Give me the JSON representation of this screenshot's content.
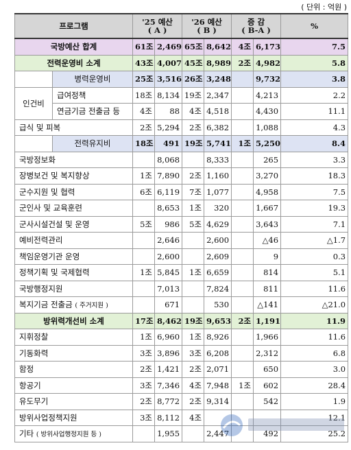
{
  "unit": "( 단위 : 억원 )",
  "headers": {
    "program": "프로그램",
    "y25_top": "'25 예산",
    "y25_sub": "( A )",
    "y26_top": "'26 예산",
    "y26_sub": "( B )",
    "diff_top": "증 감",
    "diff_sub": "( B-A )",
    "pct": "%"
  },
  "rows": {
    "r1": {
      "label": "국방예산 합계",
      "a1": "61조",
      "a2": "2,469",
      "b1": "65조",
      "b2": "8,642",
      "d1": "4조",
      "d2": "6,173",
      "p": "7.5"
    },
    "r2": {
      "label": "전력운영비 소계",
      "a1": "43조",
      "a2": "4,007",
      "b1": "45조",
      "b2": "8,989",
      "d1": "2조",
      "d2": "4,982",
      "p": "5.8"
    },
    "r3": {
      "label": "병력운영비",
      "a1": "25조",
      "a2": "3,516",
      "b1": "26조",
      "b2": "3,248",
      "d1": "",
      "d2": "9,732",
      "p": "3.8"
    },
    "r4": {
      "group": "인건비",
      "label": "급여정책",
      "a1": "18조",
      "a2": "8,134",
      "b1": "19조",
      "b2": "2,347",
      "d1": "",
      "d2": "4,213",
      "p": "2.2"
    },
    "r5": {
      "label": "연금기금 전출금 등",
      "a1": "4조",
      "a2": "88",
      "b1": "4조",
      "b2": "4,518",
      "d1": "",
      "d2": "4,430",
      "p": "11.1"
    },
    "r6": {
      "label": "급식 및 피복",
      "a1": "2조",
      "a2": "5,294",
      "b1": "2조",
      "b2": "6,382",
      "d1": "",
      "d2": "1,088",
      "p": "4.3"
    },
    "r7": {
      "label": "전력유지비",
      "a1": "18조",
      "a2": "491",
      "b1": "19조",
      "b2": "5,741",
      "d1": "1조",
      "d2": "5,250",
      "p": "8.4"
    },
    "r8": {
      "label": "국방정보화",
      "a1": "",
      "a2": "8,068",
      "b1": "",
      "b2": "8,333",
      "d1": "",
      "d2": "265",
      "p": "3.3"
    },
    "r9": {
      "label": "장병보건 및 복지향상",
      "a1": "1조",
      "a2": "7,890",
      "b1": "2조",
      "b2": "1,160",
      "d1": "",
      "d2": "3,270",
      "p": "18.3"
    },
    "r10": {
      "label": "군수지원 및 협력",
      "a1": "6조",
      "a2": "6,119",
      "b1": "7조",
      "b2": "1,077",
      "d1": "",
      "d2": "4,958",
      "p": "7.5"
    },
    "r11": {
      "label": "군인사 및 교육훈련",
      "a1": "",
      "a2": "8,653",
      "b1": "1조",
      "b2": "320",
      "d1": "",
      "d2": "1,667",
      "p": "19.3"
    },
    "r12": {
      "label": "군사시설건설 및 운영",
      "a1": "5조",
      "a2": "986",
      "b1": "5조",
      "b2": "4,629",
      "d1": "",
      "d2": "3,643",
      "p": "7.1"
    },
    "r13": {
      "label": "예비전력관리",
      "a1": "",
      "a2": "2,646",
      "b1": "",
      "b2": "2,600",
      "d1": "",
      "d2": "△46",
      "p": "△1.7"
    },
    "r14": {
      "label": "책임운영기관 운영",
      "a1": "",
      "a2": "2,600",
      "b1": "",
      "b2": "2,609",
      "d1": "",
      "d2": "9",
      "p": "0.3"
    },
    "r15": {
      "label": "정책기획 및 국제협력",
      "a1": "1조",
      "a2": "5,845",
      "b1": "1조",
      "b2": "6,659",
      "d1": "",
      "d2": "814",
      "p": "5.1"
    },
    "r16": {
      "label": "국방행정지원",
      "a1": "",
      "a2": "7,013",
      "b1": "",
      "b2": "7,824",
      "d1": "",
      "d2": "811",
      "p": "11.6"
    },
    "r17": {
      "label": "복지기금 전출금",
      "note": "( 주거지원 )",
      "a1": "",
      "a2": "671",
      "b1": "",
      "b2": "530",
      "d1": "",
      "d2": "△141",
      "p": "△21.0"
    },
    "r18": {
      "label": "방위력개선비 소계",
      "a1": "17조",
      "a2": "8,462",
      "b1": "19조",
      "b2": "9,653",
      "d1": "2조",
      "d2": "1,191",
      "p": "11.9"
    },
    "r19": {
      "label": "지휘정찰",
      "a1": "1조",
      "a2": "6,960",
      "b1": "1조",
      "b2": "8,926",
      "d1": "",
      "d2": "1,966",
      "p": "11.6"
    },
    "r20": {
      "label": "기동화력",
      "a1": "3조",
      "a2": "3,896",
      "b1": "3조",
      "b2": "6,208",
      "d1": "",
      "d2": "2,312",
      "p": "6.8"
    },
    "r21": {
      "label": "함정",
      "a1": "2조",
      "a2": "1,421",
      "b1": "2조",
      "b2": "2,071",
      "d1": "",
      "d2": "650",
      "p": "3.0"
    },
    "r22": {
      "label": "항공기",
      "a1": "3조",
      "a2": "7,346",
      "b1": "4조",
      "b2": "7,948",
      "d1": "1조",
      "d2": "602",
      "p": "28.4"
    },
    "r23": {
      "label": "유도무기",
      "a1": "2조",
      "a2": "8,772",
      "b1": "2조",
      "b2": "9,314",
      "d1": "",
      "d2": "542",
      "p": "1.9"
    },
    "r24": {
      "label": "방위사업정책지원",
      "a1": "3조",
      "a2": "8,112",
      "b1": "4조",
      "b2": "",
      "d1": "",
      "d2": "",
      "p": "12.1"
    },
    "r25": {
      "label": "기타",
      "note": "( 방위사업행정지원 등 )",
      "a1": "",
      "a2": "1,955",
      "b1": "",
      "b2": "2,447",
      "d1": "",
      "d2": "492",
      "p": "25.2"
    }
  },
  "watermark": "인천광역시"
}
